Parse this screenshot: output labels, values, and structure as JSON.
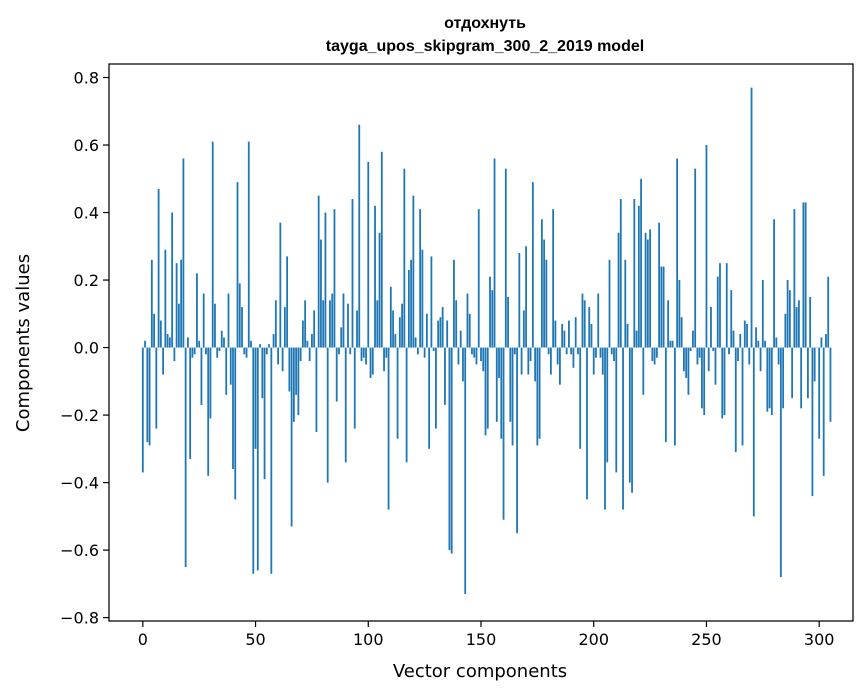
{
  "chart_data": {
    "type": "bar",
    "title": "отдохнуть",
    "subtitle": "tayga_upos_skipgram_300_2_2019 model",
    "xlabel": "Vector components",
    "ylabel": "Components values",
    "xlim": [
      -15,
      315
    ],
    "ylim": [
      -0.81,
      0.84
    ],
    "xticks": [
      0,
      50,
      100,
      150,
      200,
      250,
      300
    ],
    "xtick_labels": [
      "0",
      "50",
      "100",
      "150",
      "200",
      "250",
      "300"
    ],
    "yticks": [
      -0.8,
      -0.6,
      -0.4,
      -0.2,
      0.0,
      0.2,
      0.4,
      0.6,
      0.8
    ],
    "ytick_labels": [
      "−0.8",
      "−0.6",
      "−0.4",
      "−0.2",
      "0.0",
      "0.2",
      "0.4",
      "0.6",
      "0.8"
    ],
    "grid": false,
    "bar_color": "#1f77b4",
    "values": [
      -0.37,
      0.02,
      -0.28,
      -0.29,
      0.26,
      0.1,
      -0.24,
      0.47,
      0.08,
      -0.08,
      0.29,
      0.04,
      0.03,
      0.4,
      -0.04,
      0.25,
      0.13,
      0.26,
      0.56,
      -0.65,
      0.03,
      -0.33,
      -0.03,
      -0.02,
      0.22,
      0.02,
      -0.17,
      0.16,
      -0.02,
      -0.38,
      -0.21,
      0.61,
      0.13,
      -0.03,
      -0.01,
      0.05,
      0.03,
      -0.14,
      0.16,
      -0.11,
      -0.36,
      -0.45,
      0.49,
      0.19,
      0.12,
      -0.02,
      -0.03,
      0.61,
      0.02,
      -0.67,
      -0.3,
      -0.66,
      0.01,
      -0.15,
      -0.39,
      -0.02,
      0.01,
      -0.67,
      0.04,
      0.14,
      -0.05,
      0.37,
      -0.07,
      0.12,
      0.27,
      -0.13,
      -0.53,
      -0.22,
      -0.14,
      -0.2,
      -0.04,
      0.08,
      0.14,
      0.02,
      -0.04,
      0.04,
      0.11,
      -0.25,
      0.45,
      0.32,
      0.14,
      0.4,
      -0.4,
      0.14,
      0.16,
      0.41,
      -0.16,
      -0.02,
      0.06,
      0.16,
      -0.34,
      0.13,
      -0.02,
      0.44,
      -0.24,
      0.11,
      0.66,
      -0.04,
      -0.03,
      -0.05,
      0.55,
      -0.09,
      -0.08,
      0.42,
      0.14,
      0.34,
      0.58,
      -0.07,
      -0.03,
      -0.48,
      0.18,
      0.11,
      0.04,
      -0.27,
      0.09,
      0.13,
      0.53,
      -0.34,
      0.23,
      0.26,
      0.45,
      0.03,
      -0.02,
      0.41,
      0.29,
      -0.03,
      0.1,
      -0.3,
      0.27,
      -0.01,
      -0.24,
      0.08,
      0.09,
      0.12,
      -0.17,
      0.08,
      -0.6,
      -0.61,
      0.26,
      0.14,
      -0.05,
      0.05,
      -0.1,
      -0.73,
      0.16,
      0.1,
      -0.02,
      -0.03,
      -0.05,
      0.41,
      -0.04,
      -0.07,
      -0.26,
      -0.24,
      0.21,
      0.17,
      0.56,
      -0.22,
      -0.09,
      -0.27,
      -0.51,
      0.53,
      0.15,
      -0.22,
      -0.29,
      -0.02,
      -0.55,
      0.28,
      -0.08,
      0.11,
      0.3,
      -0.08,
      -0.04,
      0.49,
      -0.1,
      -0.29,
      -0.27,
      0.38,
      0.32,
      0.26,
      -0.02,
      -0.08,
      0.41,
      0.08,
      -0.05,
      -0.11,
      0.07,
      0.05,
      -0.02,
      0.08,
      -0.02,
      -0.06,
      0.09,
      -0.02,
      -0.3,
      0.16,
      0.14,
      -0.45,
      0.12,
      0.07,
      -0.08,
      -0.03,
      0.16,
      -0.03,
      -0.08,
      -0.48,
      -0.34,
      0.26,
      -0.02,
      -0.04,
      -0.37,
      0.34,
      0.44,
      -0.48,
      0.26,
      0.07,
      -0.4,
      -0.43,
      0.44,
      0.05,
      0.42,
      0.5,
      -0.14,
      0.34,
      0.32,
      0.35,
      -0.04,
      -0.05,
      -0.03,
      0.37,
      0.24,
      0.24,
      -0.28,
      0.14,
      0.02,
      0.02,
      -0.29,
      0.56,
      0.2,
      0.09,
      -0.07,
      -0.09,
      -0.14,
      -0.01,
      0.05,
      0.53,
      -0.05,
      -0.03,
      -0.18,
      -0.2,
      0.6,
      -0.07,
      0.12,
      -0.01,
      -0.11,
      0.21,
      0.25,
      -0.21,
      -0.2,
      0.25,
      -0.02,
      0.17,
      0.05,
      -0.31,
      -0.04,
      0.04,
      -0.29,
      0.08,
      0.07,
      -0.05,
      0.77,
      -0.5,
      0.06,
      0.02,
      -0.07,
      0.2,
      0.02,
      -0.19,
      -0.18,
      -0.2,
      0.38,
      0.03,
      -0.05,
      -0.68,
      -0.18,
      0.1,
      0.2,
      0.17,
      -0.15,
      0.41,
      0.12,
      0.14,
      -0.18,
      0.43,
      0.43,
      -0.15,
      0.15,
      -0.44,
      -0.1,
      0.0,
      -0.27,
      0.03,
      -0.38,
      0.04,
      0.21,
      -0.22
    ]
  }
}
